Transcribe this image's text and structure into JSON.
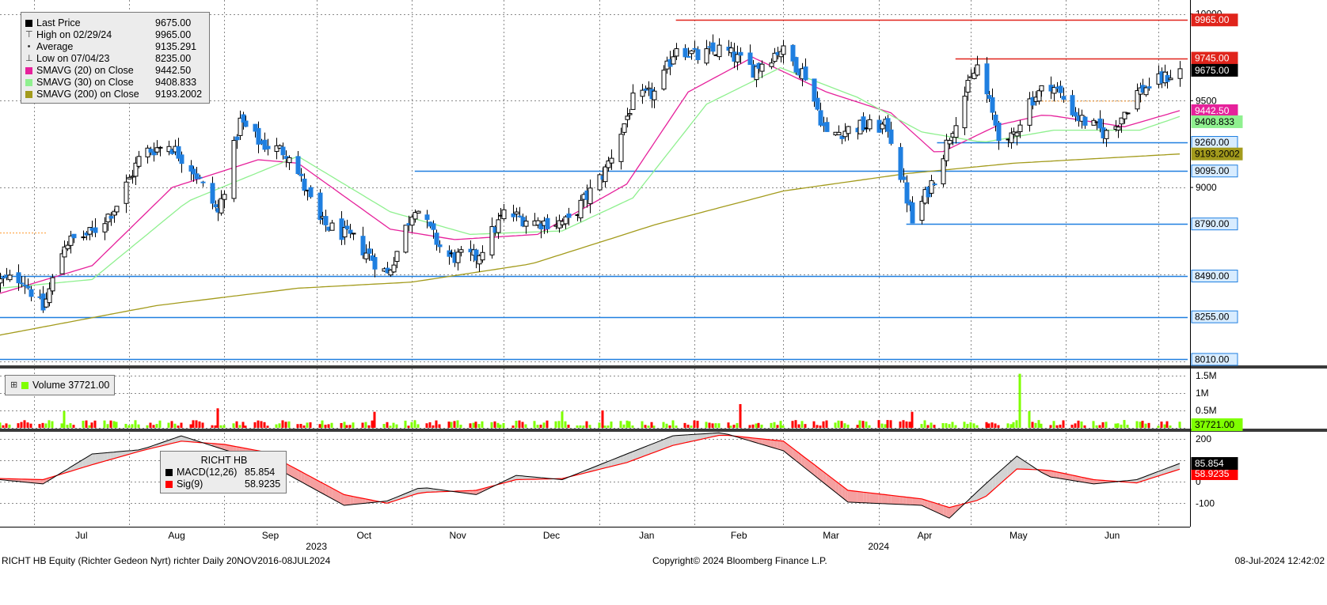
{
  "legend": {
    "price": [
      {
        "label": "Last Price",
        "value": "9675.00",
        "color": "#000000",
        "icon": "square"
      },
      {
        "label": "High on 02/29/24",
        "value": "9965.00",
        "icon": "high-marker-icon"
      },
      {
        "label": "Average",
        "value": "9135.291",
        "icon": "average-line-icon"
      },
      {
        "label": "Low on 07/04/23",
        "value": "8235.00",
        "icon": "low-marker-icon"
      },
      {
        "label": "SMAVG (20)  on Close",
        "value": "9442.50",
        "color": "#e6219b",
        "icon": "square"
      },
      {
        "label": "SMAVG (30)  on Close",
        "value": "9408.833",
        "color": "#8ff08f",
        "icon": "square"
      },
      {
        "label": "SMAVG (200)  on Close",
        "value": "9193.2002",
        "color": "#a39b1c",
        "icon": "square"
      }
    ],
    "volume": {
      "label": "Volume",
      "value": "37721.00",
      "color": "#7fff00"
    },
    "macd": {
      "title": "RICHT HB",
      "items": [
        {
          "label": "MACD(12,26)",
          "value": "85.854",
          "color": "#000000"
        },
        {
          "label": "Sig(9)",
          "value": "58.9235",
          "color": "#ff0000"
        }
      ]
    }
  },
  "price_tags": [
    {
      "text": "9965.00",
      "value": 9965,
      "bg": "#e0241b",
      "fg": "#ffffff"
    },
    {
      "text": "9745.00",
      "value": 9745,
      "bg": "#e0241b",
      "fg": "#ffffff"
    },
    {
      "text": "9675.00",
      "value": 9675,
      "bg": "#000000",
      "fg": "#ffffff"
    },
    {
      "text": "9442.50",
      "value": 9442.5,
      "bg": "#e6219b",
      "fg": "#ffffff"
    },
    {
      "text": "9408.833",
      "value": 9408.833,
      "bg": "#8ff08f",
      "fg": "#000000"
    },
    {
      "text": "9260.00",
      "value": 9260,
      "bg": "#d8ecff",
      "fg": "#000000",
      "border": "#1f7fe0"
    },
    {
      "text": "9193.2002",
      "value": 9193.2002,
      "bg": "#a39b1c",
      "fg": "#000000"
    },
    {
      "text": "9095.00",
      "value": 9095,
      "bg": "#d8ecff",
      "fg": "#000000",
      "border": "#1f7fe0"
    },
    {
      "text": "8790.00",
      "value": 8790,
      "bg": "#d8ecff",
      "fg": "#000000",
      "border": "#1f7fe0"
    },
    {
      "text": "8490.00",
      "value": 8490,
      "bg": "#d8ecff",
      "fg": "#000000",
      "border": "#1f7fe0"
    },
    {
      "text": "8255.00",
      "value": 8255,
      "bg": "#d8ecff",
      "fg": "#000000",
      "border": "#1f7fe0"
    },
    {
      "text": "8010.00",
      "value": 8010,
      "bg": "#d8ecff",
      "fg": "#000000",
      "border": "#1f7fe0"
    }
  ],
  "volume_tag": {
    "text": "37721.00",
    "value": 37721,
    "bg": "#7fff00",
    "fg": "#000000"
  },
  "macd_tags": [
    {
      "text": "85.854",
      "value": 85.854,
      "bg": "#000000",
      "fg": "#ffffff"
    },
    {
      "text": "58.9235",
      "value": 58.9235,
      "bg": "#ff0000",
      "fg": "#ffffff"
    }
  ],
  "footer": {
    "left": "RICHT HB Equity (Richter Gedeon Nyrt) richter  Daily 20NOV2016-08JUL2024",
    "center": "Copyright© 2024 Bloomberg Finance L.P.",
    "right": "08-Jul-2024 12:42:02"
  },
  "chart_data": [
    {
      "panel": "price",
      "type": "candlestick",
      "x_axis": {
        "months": [
          "Jul",
          "Aug",
          "Sep",
          "Oct",
          "Nov",
          "Dec",
          "Jan",
          "Feb",
          "Mar",
          "Apr",
          "May",
          "Jun"
        ],
        "years": [
          {
            "label": "2023",
            "after_month": "Sep"
          },
          {
            "label": "2024",
            "after_month": "Mar"
          }
        ],
        "start_date": "2023-06-20",
        "end_date": "2024-07-08"
      },
      "y_axis": {
        "min": 7980,
        "max": 10080,
        "ticks": [
          9000,
          9500,
          10000
        ],
        "tick_labels": [
          "9000",
          "9500",
          "10000"
        ],
        "side": "right"
      },
      "candle_colors": {
        "up": "#ffffff",
        "down": "#1f7fe0",
        "outline": "#000000"
      },
      "price_anchors": [
        [
          "2023-06-20",
          8460
        ],
        [
          "2023-06-27",
          8480
        ],
        [
          "2023-07-04",
          8300
        ],
        [
          "2023-07-11",
          8680
        ],
        [
          "2023-07-20",
          8740
        ],
        [
          "2023-07-28",
          8900
        ],
        [
          "2023-08-05",
          9200
        ],
        [
          "2023-08-14",
          9250
        ],
        [
          "2023-08-22",
          9100
        ],
        [
          "2023-08-30",
          8850
        ],
        [
          "2023-09-06",
          9380
        ],
        [
          "2023-09-13",
          9250
        ],
        [
          "2023-09-22",
          9200
        ],
        [
          "2023-10-02",
          8800
        ],
        [
          "2023-10-13",
          8700
        ],
        [
          "2023-10-24",
          8500
        ],
        [
          "2023-11-02",
          8900
        ],
        [
          "2023-11-12",
          8600
        ],
        [
          "2023-11-22",
          8600
        ],
        [
          "2023-12-01",
          8850
        ],
        [
          "2023-12-12",
          8800
        ],
        [
          "2023-12-22",
          8800
        ],
        [
          "2024-01-03",
          9100
        ],
        [
          "2024-01-12",
          9500
        ],
        [
          "2024-01-20",
          9550
        ],
        [
          "2024-01-26",
          9820
        ],
        [
          "2024-02-02",
          9750
        ],
        [
          "2024-02-10",
          9800
        ],
        [
          "2024-02-20",
          9680
        ],
        [
          "2024-02-29",
          9800
        ],
        [
          "2024-03-08",
          9650
        ],
        [
          "2024-03-15",
          9300
        ],
        [
          "2024-03-25",
          9350
        ],
        [
          "2024-04-04",
          9350
        ],
        [
          "2024-04-12",
          8800
        ],
        [
          "2024-04-20",
          9100
        ],
        [
          "2024-04-27",
          9450
        ],
        [
          "2024-05-03",
          9700
        ],
        [
          "2024-05-12",
          9200
        ],
        [
          "2024-05-20",
          9500
        ],
        [
          "2024-05-27",
          9600
        ],
        [
          "2024-06-05",
          9400
        ],
        [
          "2024-06-15",
          9300
        ],
        [
          "2024-06-24",
          9550
        ],
        [
          "2024-07-08",
          9675
        ]
      ],
      "series": [
        {
          "name": "SMAVG (20)",
          "color": "#e6219b",
          "points": [
            [
              "2023-06-20",
              8390
            ],
            [
              "2023-07-20",
              8550
            ],
            [
              "2023-08-15",
              9000
            ],
            [
              "2023-09-12",
              9160
            ],
            [
              "2023-09-25",
              9140
            ],
            [
              "2023-10-25",
              8760
            ],
            [
              "2023-11-15",
              8700
            ],
            [
              "2023-12-12",
              8730
            ],
            [
              "2024-01-10",
              9020
            ],
            [
              "2024-01-30",
              9550
            ],
            [
              "2024-02-20",
              9750
            ],
            [
              "2024-03-15",
              9550
            ],
            [
              "2024-04-05",
              9430
            ],
            [
              "2024-04-20",
              9190
            ],
            [
              "2024-05-10",
              9360
            ],
            [
              "2024-05-25",
              9420
            ],
            [
              "2024-06-20",
              9350
            ],
            [
              "2024-07-08",
              9442.5
            ]
          ]
        },
        {
          "name": "SMAVG (30)",
          "color": "#8ff08f",
          "points": [
            [
              "2023-06-20",
              8420
            ],
            [
              "2023-07-20",
              8470
            ],
            [
              "2023-08-20",
              8920
            ],
            [
              "2023-09-25",
              9180
            ],
            [
              "2023-10-25",
              8860
            ],
            [
              "2023-11-20",
              8730
            ],
            [
              "2023-12-20",
              8750
            ],
            [
              "2024-01-12",
              8940
            ],
            [
              "2024-02-05",
              9480
            ],
            [
              "2024-02-29",
              9690
            ],
            [
              "2024-03-25",
              9520
            ],
            [
              "2024-04-15",
              9320
            ],
            [
              "2024-05-05",
              9260
            ],
            [
              "2024-05-28",
              9330
            ],
            [
              "2024-06-25",
              9330
            ],
            [
              "2024-07-08",
              9408.833
            ]
          ]
        },
        {
          "name": "SMAVG (200)",
          "color": "#a39b1c",
          "points": [
            [
              "2023-06-20",
              8150
            ],
            [
              "2023-08-10",
              8320
            ],
            [
              "2023-09-25",
              8420
            ],
            [
              "2023-11-01",
              8455
            ],
            [
              "2023-12-10",
              8560
            ],
            [
              "2024-01-20",
              8790
            ],
            [
              "2024-03-01",
              8980
            ],
            [
              "2024-04-10",
              9080
            ],
            [
              "2024-05-15",
              9140
            ],
            [
              "2024-07-08",
              9193.2002
            ]
          ]
        }
      ],
      "hlines": [
        {
          "value": 9965,
          "color": "#e0241b",
          "from": "2024-01-26",
          "to": "end",
          "label": "9965.00"
        },
        {
          "value": 9745,
          "color": "#e0241b",
          "from": "2024-04-26",
          "to": "end",
          "label": "9745.00"
        },
        {
          "value": 9260,
          "color": "#1f7fe0",
          "from": "2024-04-20",
          "to": "end",
          "label": "9260.00"
        },
        {
          "value": 9095,
          "color": "#1f7fe0",
          "from": "2023-11-02",
          "to": "end",
          "label": "9095.00"
        },
        {
          "value": 8790,
          "color": "#1f7fe0",
          "from": "2024-04-10",
          "to": "end",
          "label": "8790.00"
        },
        {
          "value": 8490,
          "color": "#1f7fe0",
          "from": "start",
          "to": "end",
          "label": "8490.00"
        },
        {
          "value": 8255,
          "color": "#1f7fe0",
          "from": "start",
          "to": "end",
          "label": "8255.00"
        },
        {
          "value": 8010,
          "color": "#1f7fe0",
          "from": "start",
          "to": "end",
          "label": "8010.00"
        }
      ]
    },
    {
      "panel": "volume",
      "type": "bar",
      "y_axis": {
        "min": 0,
        "max": 1700000,
        "ticks": [
          500000,
          1000000,
          1500000
        ],
        "tick_labels": [
          "0.5M",
          "1M",
          "1.5M"
        ]
      },
      "colors": {
        "up": "#7fff00",
        "down": "#ff0000"
      },
      "typical_volume": 150000,
      "spikes": [
        [
          "2023-07-11",
          480000
        ],
        [
          "2023-08-30",
          560000
        ],
        [
          "2023-10-20",
          460000
        ],
        [
          "2023-12-20",
          470000
        ],
        [
          "2024-01-02",
          500000
        ],
        [
          "2024-02-16",
          680000
        ],
        [
          "2024-04-12",
          460000
        ],
        [
          "2024-05-17",
          1550000
        ],
        [
          "2024-05-20",
          480000
        ]
      ],
      "last_value": 37721
    },
    {
      "panel": "macd",
      "type": "line",
      "y_axis": {
        "min": -210,
        "max": 230,
        "ticks": [
          -100,
          0,
          200
        ],
        "tick_labels": [
          "-100",
          "0",
          "200"
        ]
      },
      "series": [
        {
          "name": "MACD(12,26)",
          "color": "#000000",
          "points": [
            [
              "2023-06-20",
              10
            ],
            [
              "2023-07-04",
              -10
            ],
            [
              "2023-07-20",
              130
            ],
            [
              "2023-08-05",
              150
            ],
            [
              "2023-08-18",
              215
            ],
            [
              "2023-09-01",
              150
            ],
            [
              "2023-09-14",
              95
            ],
            [
              "2023-10-10",
              -110
            ],
            [
              "2023-10-24",
              -90
            ],
            [
              "2023-11-04",
              -25
            ],
            [
              "2023-11-22",
              -60
            ],
            [
              "2023-12-05",
              30
            ],
            [
              "2023-12-20",
              10
            ],
            [
              "2024-01-10",
              130
            ],
            [
              "2024-01-25",
              215
            ],
            [
              "2024-02-10",
              230
            ],
            [
              "2024-03-01",
              145
            ],
            [
              "2024-03-22",
              -95
            ],
            [
              "2024-04-15",
              -110
            ],
            [
              "2024-04-24",
              -170
            ],
            [
              "2024-05-05",
              -20
            ],
            [
              "2024-05-16",
              120
            ],
            [
              "2024-05-26",
              25
            ],
            [
              "2024-06-10",
              -10
            ],
            [
              "2024-06-24",
              10
            ],
            [
              "2024-07-08",
              85.854
            ]
          ]
        },
        {
          "name": "Sig(9)",
          "color": "#ff0000",
          "points": [
            [
              "2023-06-20",
              15
            ],
            [
              "2023-07-04",
              10
            ],
            [
              "2023-07-20",
              80
            ],
            [
              "2023-08-05",
              145
            ],
            [
              "2023-08-18",
              190
            ],
            [
              "2023-09-01",
              175
            ],
            [
              "2023-09-14",
              140
            ],
            [
              "2023-10-10",
              -60
            ],
            [
              "2023-10-24",
              -100
            ],
            [
              "2023-11-04",
              -50
            ],
            [
              "2023-11-22",
              -40
            ],
            [
              "2023-12-05",
              10
            ],
            [
              "2023-12-20",
              15
            ],
            [
              "2024-01-10",
              90
            ],
            [
              "2024-01-25",
              170
            ],
            [
              "2024-02-10",
              220
            ],
            [
              "2024-03-01",
              190
            ],
            [
              "2024-03-22",
              -40
            ],
            [
              "2024-04-15",
              -80
            ],
            [
              "2024-04-24",
              -120
            ],
            [
              "2024-05-05",
              -80
            ],
            [
              "2024-05-16",
              60
            ],
            [
              "2024-05-26",
              55
            ],
            [
              "2024-06-10",
              10
            ],
            [
              "2024-06-24",
              -5
            ],
            [
              "2024-07-08",
              58.9235
            ]
          ]
        }
      ]
    }
  ]
}
